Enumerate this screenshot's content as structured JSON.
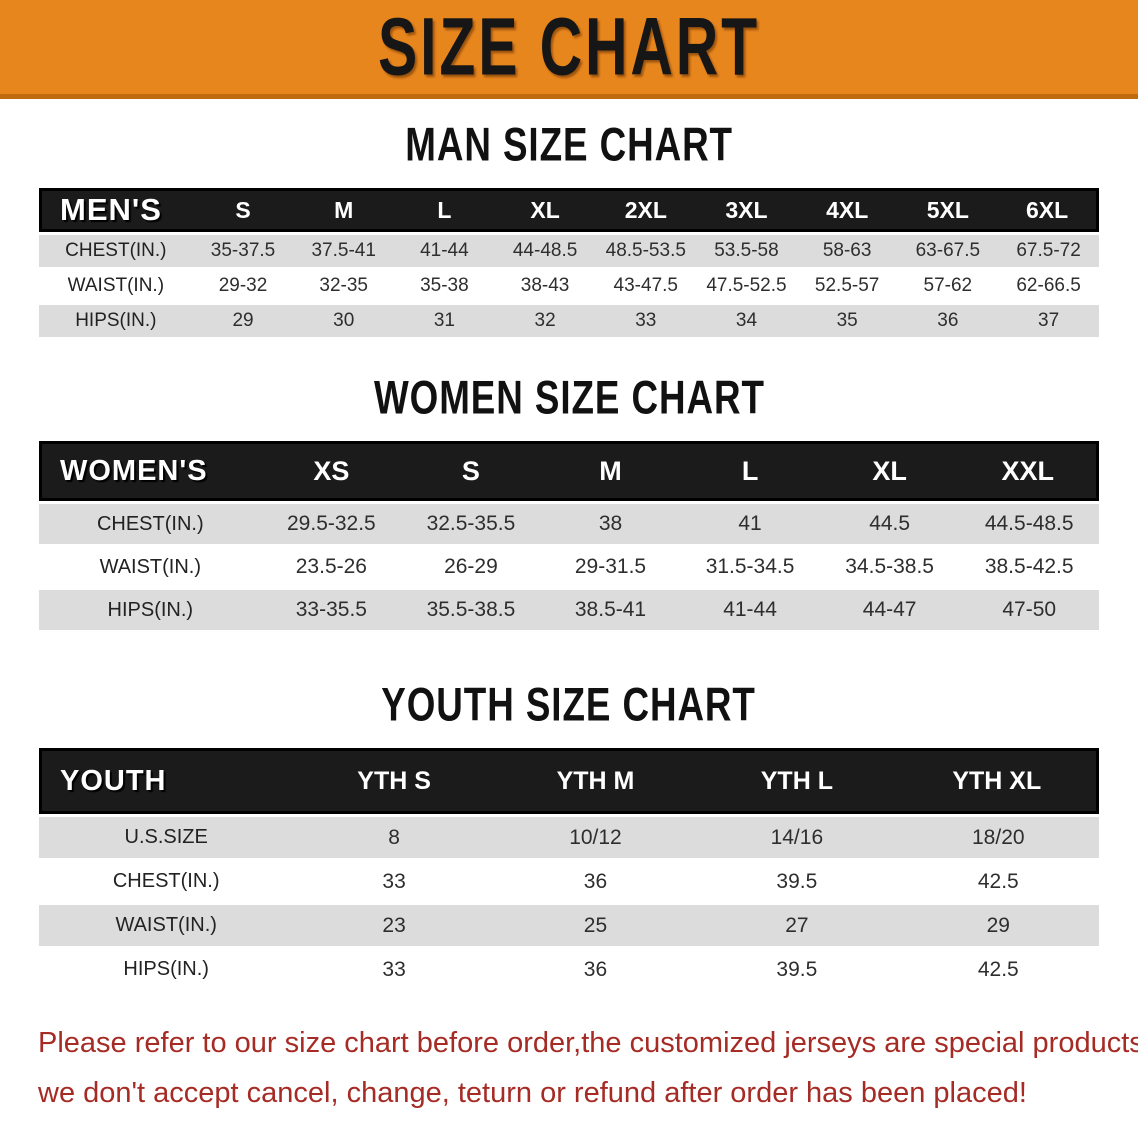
{
  "banner": {
    "title": "SIZE CHART",
    "bg_color": "#E8861E",
    "edge_color": "#C06A10",
    "text_color": "#161616"
  },
  "sections": [
    {
      "id": "men",
      "heading": "MAN SIZE CHART",
      "table": {
        "header_label": "MEN'S",
        "columns": [
          "S",
          "M",
          "L",
          "XL",
          "2XL",
          "3XL",
          "4XL",
          "5XL",
          "6XL"
        ],
        "rows": [
          {
            "label": "CHEST(IN.)",
            "values": [
              "35-37.5",
              "37.5-41",
              "41-44",
              "44-48.5",
              "48.5-53.5",
              "53.5-58",
              "58-63",
              "63-67.5",
              "67.5-72"
            ]
          },
          {
            "label": "WAIST(IN.)",
            "values": [
              "29-32",
              "32-35",
              "35-38",
              "38-43",
              "43-47.5",
              "47.5-52.5",
              "52.5-57",
              "57-62",
              "62-66.5"
            ]
          },
          {
            "label": "HIPS(IN.)",
            "values": [
              "29",
              "30",
              "31",
              "32",
              "33",
              "34",
              "35",
              "36",
              "37"
            ]
          }
        ]
      }
    },
    {
      "id": "women",
      "heading": "WOMEN SIZE CHART",
      "table": {
        "header_label": "WOMEN'S",
        "columns": [
          "XS",
          "S",
          "M",
          "L",
          "XL",
          "XXL"
        ],
        "rows": [
          {
            "label": "CHEST(IN.)",
            "values": [
              "29.5-32.5",
              "32.5-35.5",
              "38",
              "41",
              "44.5",
              "44.5-48.5"
            ]
          },
          {
            "label": "WAIST(IN.)",
            "values": [
              "23.5-26",
              "26-29",
              "29-31.5",
              "31.5-34.5",
              "34.5-38.5",
              "38.5-42.5"
            ]
          },
          {
            "label": "HIPS(IN.)",
            "values": [
              "33-35.5",
              "35.5-38.5",
              "38.5-41",
              "41-44",
              "44-47",
              "47-50"
            ]
          }
        ]
      }
    },
    {
      "id": "youth",
      "heading": "YOUTH SIZE CHART",
      "table": {
        "header_label": "YOUTH",
        "columns": [
          "YTH S",
          "YTH M",
          "YTH L",
          "YTH XL"
        ],
        "rows": [
          {
            "label": "U.S.SIZE",
            "values": [
              "8",
              "10/12",
              "14/16",
              "18/20"
            ]
          },
          {
            "label": "CHEST(IN.)",
            "values": [
              "33",
              "36",
              "39.5",
              "42.5"
            ]
          },
          {
            "label": "WAIST(IN.)",
            "values": [
              "23",
              "25",
              "27",
              "29"
            ]
          },
          {
            "label": "HIPS(IN.)",
            "values": [
              "33",
              "36",
              "39.5",
              "42.5"
            ]
          }
        ]
      }
    }
  ],
  "disclaimer": {
    "text_color": "#A62B25",
    "line1": "Please refer to our size chart before order,the customized jerseys are special products,",
    "line2": "we don't accept cancel, change, teturn or refund after order has been placed!"
  },
  "colors": {
    "header_bar_bg": "#1b1b1b",
    "stripe_row_bg": "#dcdcdc",
    "plain_row_bg": "#ffffff",
    "body_text": "#2e2e2e"
  }
}
